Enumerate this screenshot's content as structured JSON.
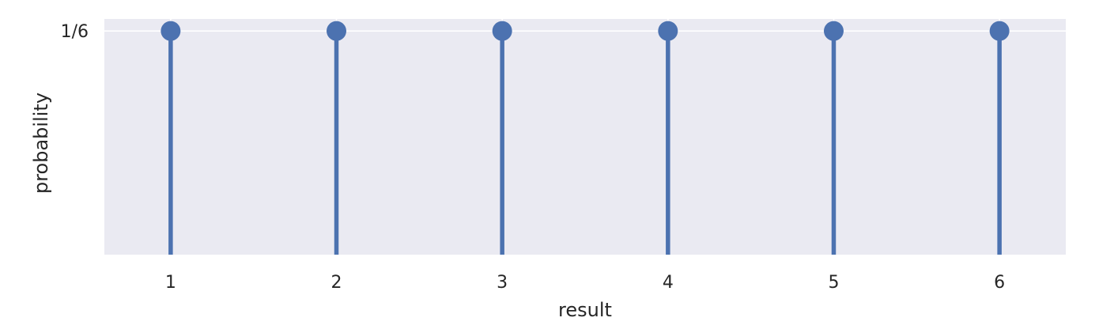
{
  "chart_data": {
    "type": "stem",
    "title": "",
    "xlabel": "result",
    "ylabel": "probability",
    "x": [
      1,
      2,
      3,
      4,
      5,
      6
    ],
    "y": [
      0.16666666666666666,
      0.16666666666666666,
      0.16666666666666666,
      0.16666666666666666,
      0.16666666666666666,
      0.16666666666666666
    ],
    "x_tick_labels": [
      "1",
      "2",
      "3",
      "4",
      "5",
      "6"
    ],
    "y_ticks": [
      0.16666666666666666
    ],
    "y_tick_labels": [
      "1/6"
    ],
    "xlim": [
      0.6,
      6.4
    ],
    "ylim": [
      0,
      0.1756
    ],
    "grid": true,
    "legend": "none",
    "colors": {
      "stem": "#4c72b0",
      "plot_background": "#eaeaf2",
      "grid": "#ffffff",
      "text": "#262626"
    }
  }
}
